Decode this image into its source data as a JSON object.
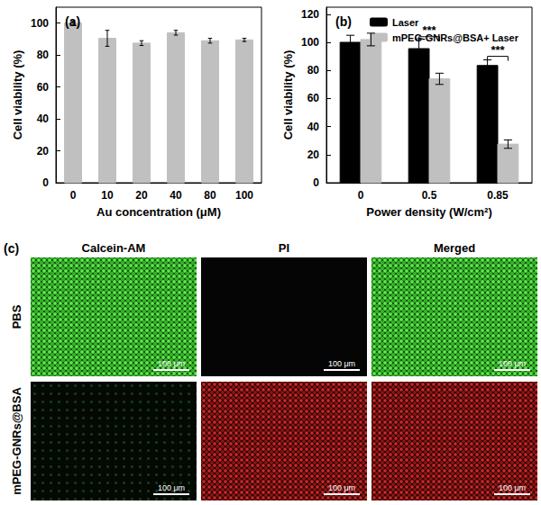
{
  "chart_data": [
    {
      "type": "bar",
      "title": "(a)",
      "categories": [
        "0",
        "10",
        "20",
        "40",
        "80",
        "100"
      ],
      "values": [
        100,
        90.5,
        87.5,
        94,
        89,
        89.5
      ],
      "errors": [
        1.5,
        5,
        1.5,
        1.5,
        1.5,
        1
      ],
      "color": "#c0c0c0",
      "x_label": "Au concentration (μM)",
      "y_label": "Cell viability (%)",
      "ylim": [
        0,
        110
      ],
      "yticks": [
        0,
        20,
        40,
        60,
        80,
        100
      ],
      "grid": false
    },
    {
      "type": "bar",
      "title": "(b)",
      "categories": [
        "0",
        "0.5",
        "0.85"
      ],
      "series": [
        {
          "name": "Laser",
          "color": "#000000",
          "values": [
            100,
            95.5,
            83.5
          ],
          "errors": [
            5,
            7,
            4
          ]
        },
        {
          "name": "mPEG-GNRs@BSA+ Laser",
          "color": "#c0c0c0",
          "values": [
            102,
            74,
            27.5
          ],
          "errors": [
            4.5,
            4,
            3
          ]
        }
      ],
      "x_label": "Power density (W/cm²)",
      "y_label": "Cell viability (%)",
      "ylim": [
        0,
        125
      ],
      "yticks": [
        0,
        20,
        40,
        60,
        80,
        100,
        120
      ],
      "grid": false,
      "legend": "upper right",
      "annotations": [
        {
          "category": "0.5",
          "y": 104,
          "text": "***"
        },
        {
          "category": "0.85",
          "y": 90,
          "text": "***"
        }
      ]
    }
  ],
  "panel_c": {
    "label": "(c)",
    "columns": [
      "Calcein-AM",
      "PI",
      "Merged"
    ],
    "rows": [
      "PBS",
      "mPEG-GNRs@BSA"
    ],
    "scale_bar": "100 μm"
  }
}
